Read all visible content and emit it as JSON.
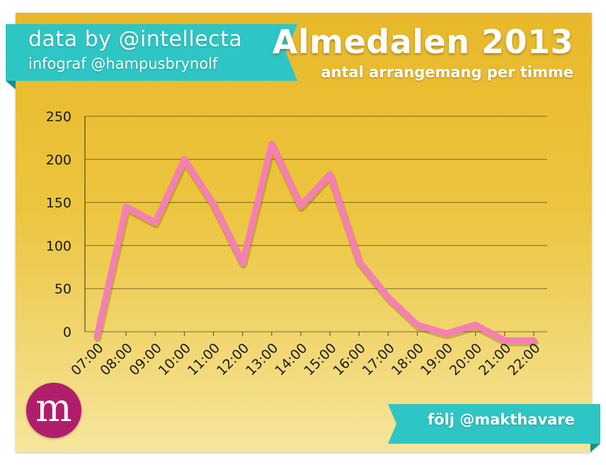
{
  "header": {
    "credit_line1": "data by @intellecta",
    "credit_line2": "infograf @hampusbrynolf"
  },
  "footer": {
    "follow_text": "följ @makthavare",
    "logo_letter": "m"
  },
  "colors": {
    "background": "#ecc53f",
    "ribbon": "#2ec6c4",
    "ribbon_dark": "#1a8d8c",
    "line": "#f57fb5",
    "logo": "#b01e6b"
  },
  "chart_data": {
    "type": "line",
    "title": "Almedalen 2013",
    "subtitle": "antal arrangemang per timme",
    "xlabel": "",
    "ylabel": "",
    "categories": [
      "07:00",
      "08:00",
      "09:00",
      "10:00",
      "11:00",
      "12:00",
      "13:00",
      "14:00",
      "15:00",
      "16:00",
      "17:00",
      "18:00",
      "19:00",
      "20:00",
      "21:00",
      "22:00"
    ],
    "series": [
      {
        "values": [
          -5,
          145,
          127,
          200,
          148,
          80,
          218,
          146,
          183,
          82,
          40,
          8,
          -2,
          8,
          -10,
          -10
        ]
      }
    ],
    "yticks": [
      0,
      50,
      100,
      150,
      200,
      250
    ],
    "ylim": [
      0,
      250
    ],
    "grid": true,
    "legend": "none"
  }
}
